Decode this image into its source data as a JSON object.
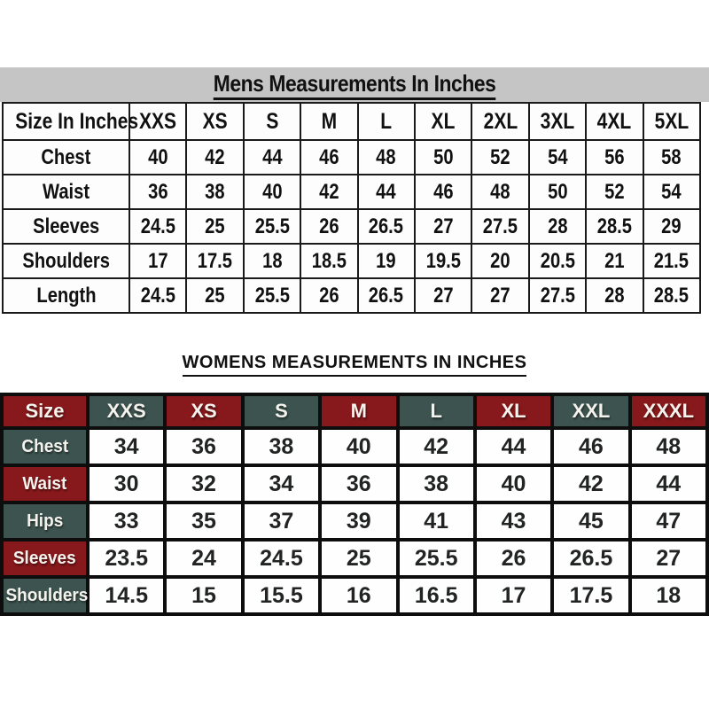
{
  "colors": {
    "maroon": "#87181b",
    "teal": "#3d534f",
    "band_gray": "#c5c5c5",
    "grid_black": "#0d0d0d",
    "table_border": "#1a1a1a",
    "text_black": "#111111",
    "label_white": "#f4f2ed",
    "page_bg": "#ffffff"
  },
  "chart_data": [
    {
      "type": "table",
      "title": "Mens Measurements In Inches",
      "header_label": "Size In Inches",
      "sizes": [
        "XXS",
        "XS",
        "S",
        "M",
        "L",
        "XL",
        "2XL",
        "3XL",
        "4XL",
        "5XL"
      ],
      "rows": [
        {
          "label": "Chest",
          "values": [
            "40",
            "42",
            "44",
            "46",
            "48",
            "50",
            "52",
            "54",
            "56",
            "58"
          ]
        },
        {
          "label": "Waist",
          "values": [
            "36",
            "38",
            "40",
            "42",
            "44",
            "46",
            "48",
            "50",
            "52",
            "54"
          ]
        },
        {
          "label": "Sleeves",
          "values": [
            "24.5",
            "25",
            "25.5",
            "26",
            "26.5",
            "27",
            "27.5",
            "28",
            "28.5",
            "29"
          ]
        },
        {
          "label": "Shoulders",
          "values": [
            "17",
            "17.5",
            "18",
            "18.5",
            "19",
            "19.5",
            "20",
            "20.5",
            "21",
            "21.5"
          ]
        },
        {
          "label": "Length",
          "values": [
            "24.5",
            "25",
            "25.5",
            "26",
            "26.5",
            "27",
            "27",
            "27.5",
            "28",
            "28.5"
          ]
        }
      ]
    },
    {
      "type": "table",
      "title": "WOMENS MEASUREMENTS IN INCHES",
      "header_label": "Size",
      "sizes": [
        "XXS",
        "XS",
        "S",
        "M",
        "L",
        "XL",
        "XXL",
        "XXXL"
      ],
      "rows": [
        {
          "label": "Chest",
          "values": [
            "34",
            "36",
            "38",
            "40",
            "42",
            "44",
            "46",
            "48"
          ]
        },
        {
          "label": "Waist",
          "values": [
            "30",
            "32",
            "34",
            "36",
            "38",
            "40",
            "42",
            "44"
          ]
        },
        {
          "label": "Hips",
          "values": [
            "33",
            "35",
            "37",
            "39",
            "41",
            "43",
            "45",
            "47"
          ]
        },
        {
          "label": "Sleeves",
          "values": [
            "23.5",
            "24",
            "24.5",
            "25",
            "25.5",
            "26",
            "26.5",
            "27"
          ]
        },
        {
          "label": "Shoulders",
          "values": [
            "14.5",
            "15",
            "15.5",
            "16",
            "16.5",
            "17",
            "17.5",
            "18"
          ]
        }
      ]
    }
  ]
}
